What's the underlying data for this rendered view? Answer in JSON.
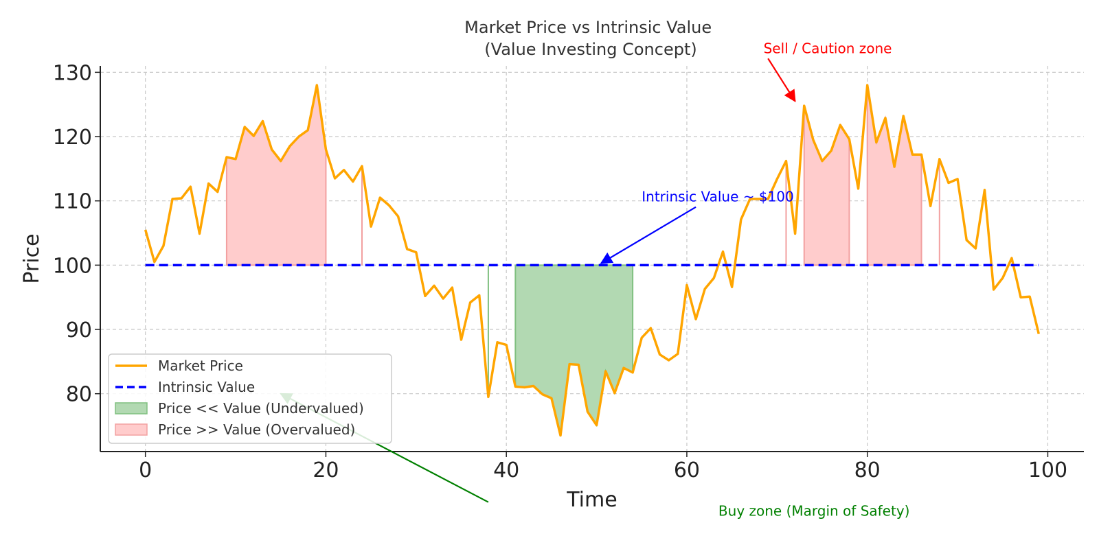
{
  "chart_data": {
    "type": "line",
    "title": "Market Price vs Intrinsic Value\n(Value Investing Concept)",
    "xlabel": "Time",
    "ylabel": "Price",
    "xlim": [
      -5,
      104
    ],
    "ylim": [
      71,
      131
    ],
    "xticks": [
      0,
      20,
      40,
      60,
      80,
      100
    ],
    "yticks": [
      80,
      90,
      100,
      110,
      120,
      130
    ],
    "grid": true,
    "grid_style": "dashed",
    "legend_position": "lower-left",
    "legend": [
      {
        "label": "Market Price",
        "kind": "line",
        "color": "#FFA500"
      },
      {
        "label": "Intrinsic Value",
        "kind": "dashed",
        "color": "#0000FF"
      },
      {
        "label": "Price << Value (Undervalued)",
        "kind": "patch",
        "color": "#008000"
      },
      {
        "label": "Price >> Value (Overvalued)",
        "kind": "patch",
        "color": "#FF0000"
      }
    ],
    "series": [
      {
        "name": "Market Price",
        "color": "#FFA500",
        "x": [
          0,
          1,
          2,
          3,
          4,
          5,
          6,
          7,
          8,
          9,
          10,
          11,
          12,
          13,
          14,
          15,
          16,
          17,
          18,
          19,
          20,
          21,
          22,
          23,
          24,
          25,
          26,
          27,
          28,
          29,
          30,
          31,
          32,
          33,
          34,
          35,
          36,
          37,
          38,
          39,
          40,
          41,
          42,
          43,
          44,
          45,
          46,
          47,
          48,
          49,
          50,
          51,
          52,
          53,
          54,
          55,
          56,
          57,
          58,
          59,
          60,
          61,
          62,
          63,
          64,
          65,
          66,
          67,
          68,
          69,
          70,
          71,
          72,
          73,
          74,
          75,
          76,
          77,
          78,
          79,
          80,
          81,
          82,
          83,
          84,
          85,
          86,
          87,
          88,
          89,
          90,
          91,
          92,
          93,
          94,
          95,
          96,
          97,
          98,
          99
        ],
        "y": [
          105.5,
          100.5,
          103,
          110.3,
          110.4,
          112.2,
          104.9,
          112.7,
          111.4,
          116.8,
          116.5,
          121.5,
          120.1,
          122.4,
          118,
          116.2,
          118.5,
          120,
          121,
          128,
          118,
          113.5,
          114.8,
          113,
          115.4,
          106,
          110.5,
          109.3,
          107.6,
          102.5,
          102,
          95.2,
          96.8,
          94.8,
          96.5,
          88.4,
          94.2,
          95.3,
          79.5,
          88,
          87.6,
          81.1,
          81,
          81.2,
          79.9,
          79.3,
          73.5,
          84.6,
          84.5,
          77.2,
          75.1,
          83.5,
          80.1,
          84,
          83.3,
          88.7,
          90.2,
          86.1,
          85.2,
          86.2,
          96.9,
          91.6,
          96.3,
          98,
          102.1,
          96.6,
          107.1,
          110.3,
          110.3,
          110.3,
          113.4,
          116.2,
          104.9,
          124.8,
          119.5,
          116.2,
          117.8,
          121.8,
          119.6,
          111.9,
          128,
          119.1,
          122.9,
          115.3,
          123.2,
          117.2,
          117.2,
          109.2,
          116.5,
          112.8,
          113.4,
          103.9,
          102.6,
          111.7,
          96.2,
          98,
          101.1,
          95,
          95.1,
          89.3
        ]
      },
      {
        "name": "Intrinsic Value",
        "color": "#0000FF",
        "style": "dashed",
        "x": [
          0,
          99
        ],
        "y": [
          100,
          100
        ]
      }
    ],
    "fill_regions": [
      {
        "kind": "overvalued",
        "color": "#FF0000",
        "x_start": 9,
        "x_end": 20
      },
      {
        "kind": "overvalued",
        "color": "#FF0000",
        "x_start": 24,
        "x_end": 24
      },
      {
        "kind": "undervalued",
        "color": "#008000",
        "x_start": 38,
        "x_end": 38
      },
      {
        "kind": "undervalued",
        "color": "#008000",
        "x_start": 41,
        "x_end": 54
      },
      {
        "kind": "overvalued",
        "color": "#FF0000",
        "x_start": 71,
        "x_end": 71
      },
      {
        "kind": "overvalued",
        "color": "#FF0000",
        "x_start": 73,
        "x_end": 78
      },
      {
        "kind": "overvalued",
        "color": "#FF0000",
        "x_start": 80,
        "x_end": 86
      },
      {
        "kind": "overvalued",
        "color": "#FF0000",
        "x_start": 88,
        "x_end": 88
      }
    ],
    "annotations": [
      {
        "text": "Buy zone (Margin of Safety)",
        "color": "#008000",
        "text_at": [
          63.5,
          61
        ],
        "arrow_to": [
          15,
          80
        ]
      },
      {
        "text": "Sell / Caution zone",
        "color": "#FF0000",
        "text_at": [
          68.5,
          133
        ],
        "arrow_to": [
          72,
          125.5
        ]
      },
      {
        "text": "Intrinsic Value ~ $100",
        "color": "#0000FF",
        "text_at": [
          55,
          109.9
        ],
        "arrow_to": [
          50.5,
          100.3
        ]
      }
    ]
  }
}
